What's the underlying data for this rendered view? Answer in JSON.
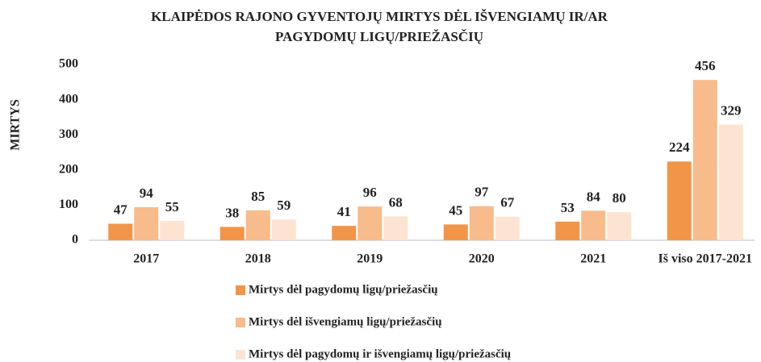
{
  "chart_data": {
    "type": "bar",
    "title": "KLAIPĖDOS RAJONO GYVENTOJŲ  MIRTYS DĖL IŠVENGIAMŲ IR/AR",
    "subtitle": "PAGYDOMŲ LIGŲ/PRIEŽASČIŲ",
    "y_label": "MIRTYS",
    "categories": [
      "2017",
      "2018",
      "2019",
      "2020",
      "2021",
      "Iš viso 2017-2021"
    ],
    "series": [
      {
        "name": "Mirtys dėl pagydomų ligų/priežasčių",
        "color": "#f29549",
        "values": [
          47,
          38,
          41,
          45,
          53,
          224
        ]
      },
      {
        "name": "Mirtys dėl išvengiamų ligų/priežasčių",
        "color": "#f8bb8b",
        "values": [
          94,
          85,
          96,
          97,
          84,
          456
        ]
      },
      {
        "name": "Mirtys dėl pagydomų ir išvengiamų ligų/priežasčių",
        "color": "#fde3d1",
        "values": [
          55,
          59,
          68,
          67,
          80,
          329
        ]
      }
    ],
    "ylim": [
      0,
      500
    ],
    "yticks": [
      0,
      100,
      200,
      300,
      400,
      500
    ],
    "grid": false,
    "legend": "bottom"
  }
}
